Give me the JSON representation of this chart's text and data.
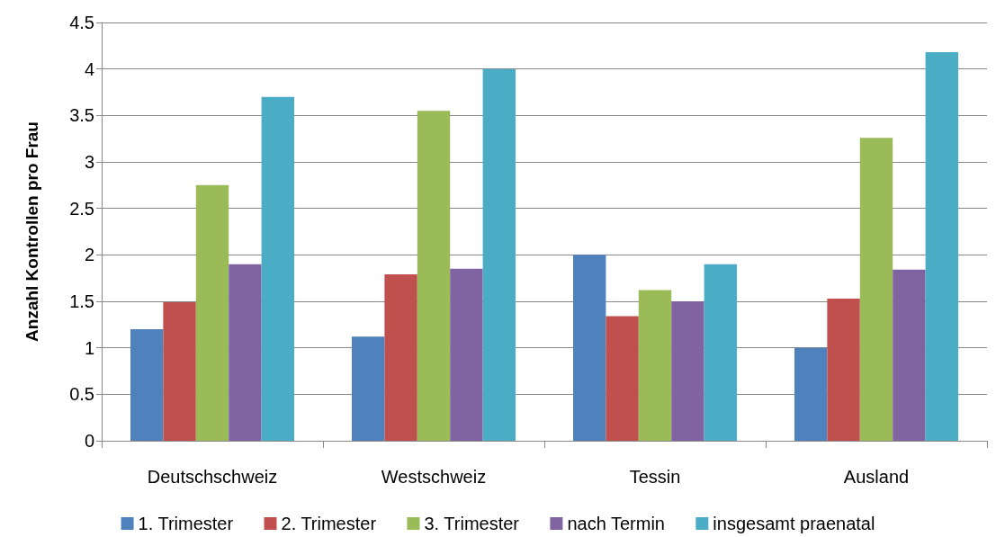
{
  "chart_data": {
    "type": "bar",
    "ylabel": "Anzahl Kontrollen pro Frau",
    "categories": [
      "Deutschschweiz",
      "Westschweiz",
      "Tessin",
      "Ausland"
    ],
    "series": [
      {
        "name": "1. Trimester",
        "color": "#4f81bd",
        "values": [
          1.2,
          1.12,
          2.0,
          1.0
        ]
      },
      {
        "name": "2. Trimester",
        "color": "#c0504d",
        "values": [
          1.49,
          1.79,
          1.34,
          1.53
        ]
      },
      {
        "name": "3. Trimester",
        "color": "#9bbb59",
        "values": [
          2.75,
          3.55,
          1.62,
          3.26
        ]
      },
      {
        "name": "nach Termin",
        "color": "#8064a2",
        "values": [
          1.9,
          1.85,
          1.5,
          1.84
        ]
      },
      {
        "name": "insgesamt praenatal",
        "color": "#4bacc6",
        "values": [
          3.7,
          4.0,
          1.9,
          4.18
        ]
      }
    ],
    "ylim": [
      0,
      4.5
    ],
    "yticks": [
      0,
      0.5,
      1,
      1.5,
      2,
      2.5,
      3,
      3.5,
      4,
      4.5
    ],
    "grid": "y",
    "legend": "bottom"
  }
}
